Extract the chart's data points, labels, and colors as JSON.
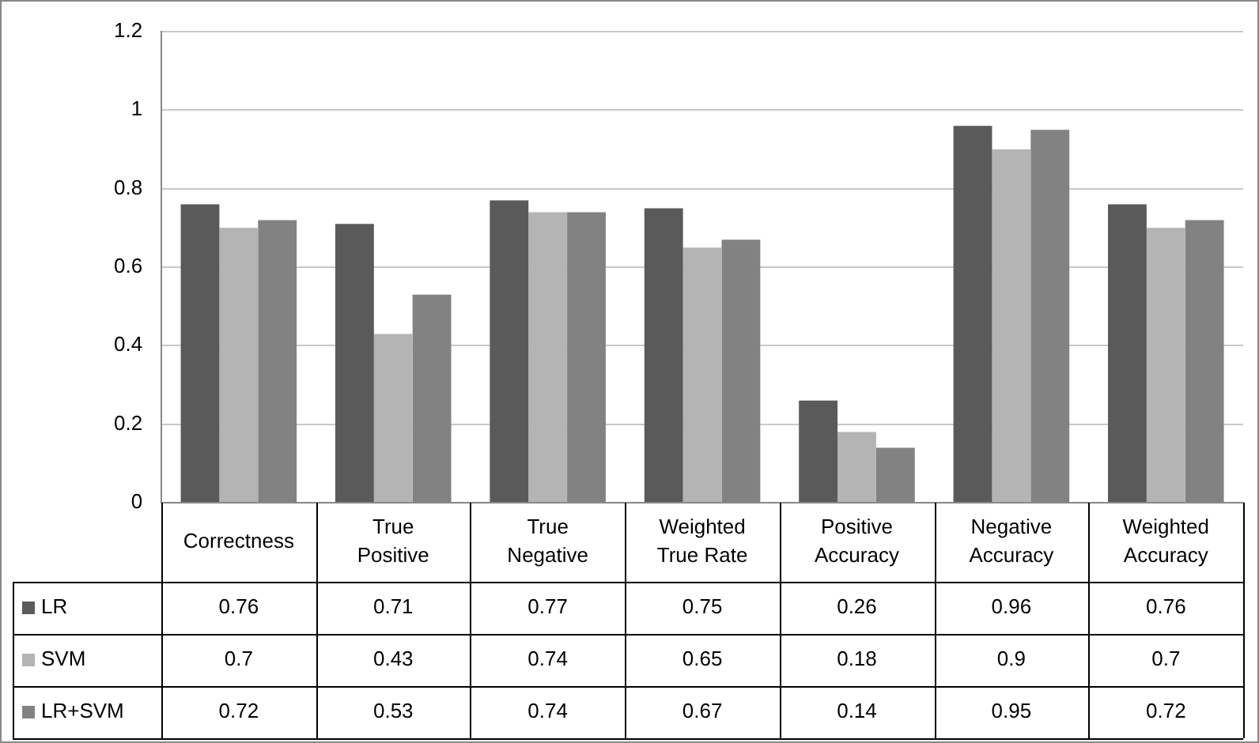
{
  "chart_data": {
    "type": "bar",
    "categories": [
      "Correctness",
      "True Positive",
      "True Negative",
      "Weighted True Rate",
      "Positive Accuracy",
      "Negative Accuracy",
      "Weighted Accuracy"
    ],
    "series": [
      {
        "name": "LR",
        "color": "#5a5a5a",
        "values": [
          0.76,
          0.71,
          0.77,
          0.75,
          0.26,
          0.96,
          0.76
        ]
      },
      {
        "name": "SVM",
        "color": "#b4b4b4",
        "values": [
          0.7,
          0.43,
          0.74,
          0.65,
          0.18,
          0.9,
          0.7
        ]
      },
      {
        "name": "LR+SVM",
        "color": "#828282",
        "values": [
          0.72,
          0.53,
          0.74,
          0.67,
          0.14,
          0.95,
          0.72
        ]
      }
    ],
    "ylim": [
      0,
      1.2
    ],
    "yticks": [
      0,
      0.2,
      0.4,
      0.6,
      0.8,
      1,
      1.2
    ],
    "grid": "y",
    "data_labels": true,
    "legend": "bottom"
  }
}
